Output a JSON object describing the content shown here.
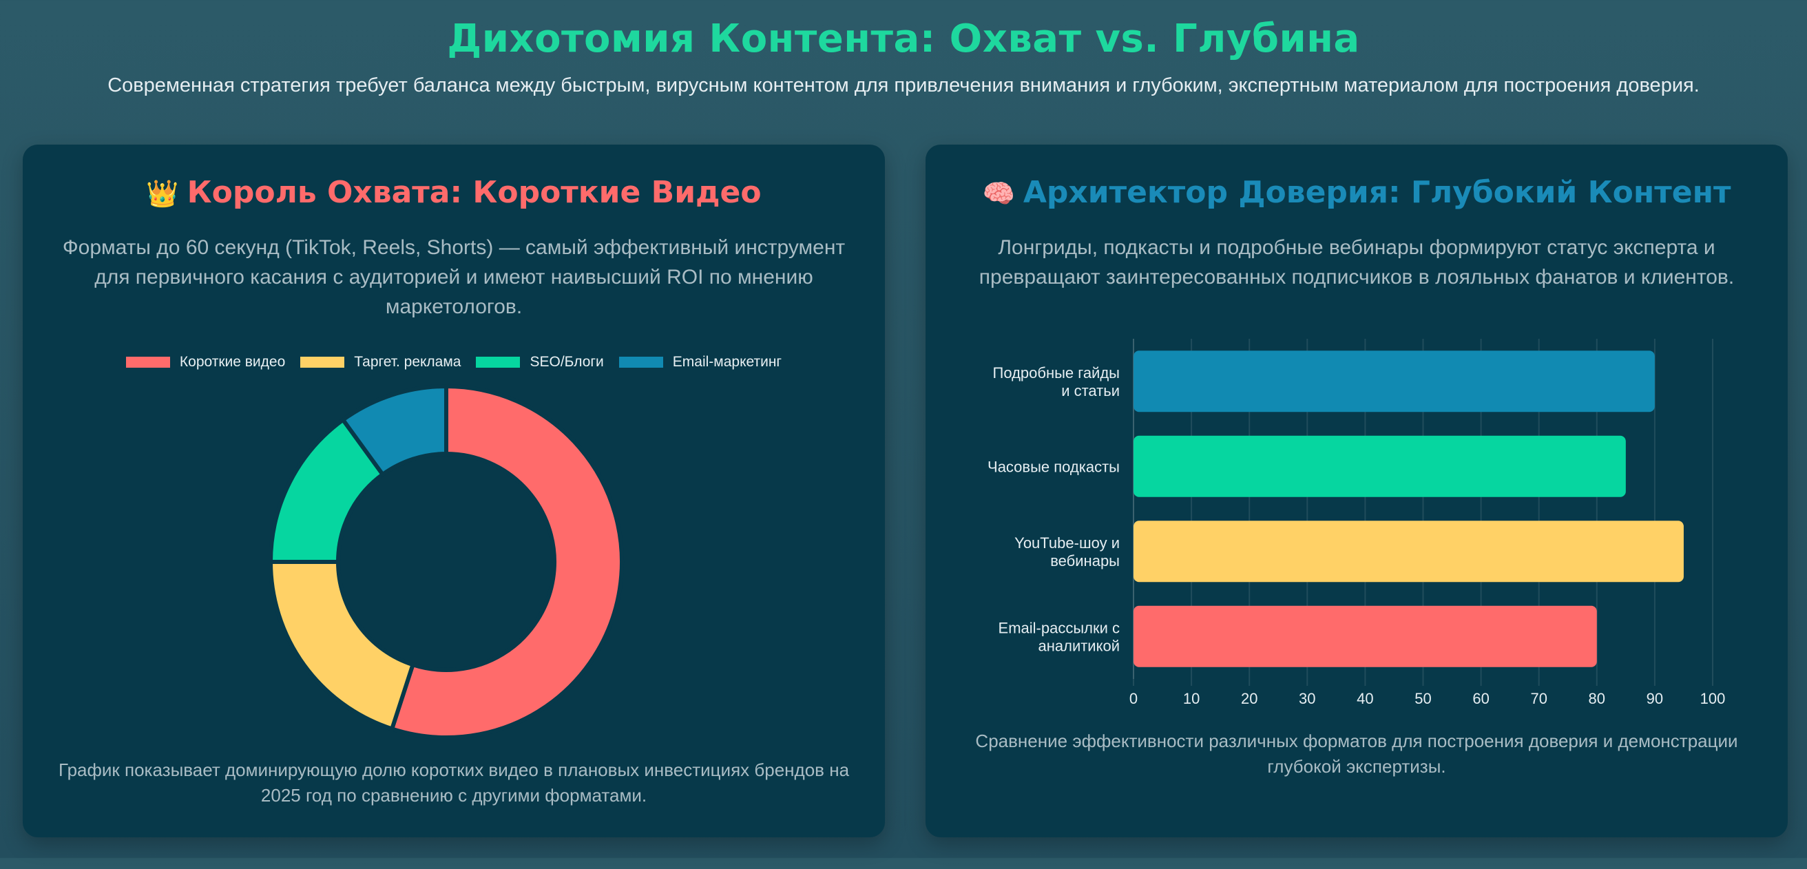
{
  "header": {
    "title": "Дихотомия Контента: Охват vs. Глубина",
    "subtitle": "Современная стратегия требует баланса между быстрым, вирусным контентом для привлечения внимания и глубоким, экспертным материалом для построения доверия."
  },
  "left_card": {
    "emoji": "👑",
    "title": "Король Охвата: Короткие Видео",
    "description": "Форматы до 60 секунд (TikTok, Reels, Shorts) — самый эффективный инструмент для первичного касания с аудиторией и имеют наивысший ROI по мнению маркетологов.",
    "footnote": "График показывает доминирующую долю коротких видео в плановых инвестициях брендов на 2025 год по сравнению с другими форматами."
  },
  "right_card": {
    "emoji": "🧠",
    "title": "Архитектор Доверия: Глубокий Контент",
    "description": "Лонгриды, подкасты и подробные вебинары формируют статус эксперта и превращают заинтересованных подписчиков в лояльных фанатов и клиентов.",
    "footnote": "Сравнение эффективности различных форматов для построения доверия и демонстрации глубокой экспертизы."
  },
  "chart_data": [
    {
      "type": "pie",
      "variant": "doughnut",
      "title": "",
      "categories": [
        "Короткие видео",
        "Таргет. реклама",
        "SEO/Блоги",
        "Email-маркетинг"
      ],
      "values": [
        55,
        20,
        15,
        10
      ],
      "colors": [
        "#ff6b6b",
        "#ffd166",
        "#06d6a0",
        "#118ab2"
      ],
      "legend": "top"
    },
    {
      "type": "bar",
      "orientation": "horizontal",
      "title": "",
      "categories": [
        [
          "Подробные гайды",
          "и статьи"
        ],
        [
          "Часовые подкасты"
        ],
        [
          "YouTube-шоу и",
          "вебинары"
        ],
        [
          "Email-рассылки с",
          "аналитикой"
        ]
      ],
      "values": [
        90,
        85,
        95,
        80
      ],
      "colors": [
        "#118ab2",
        "#06d6a0",
        "#ffd166",
        "#ff6b6b"
      ],
      "xlim": [
        0,
        100
      ],
      "xticks": [
        0,
        10,
        20,
        30,
        40,
        50,
        60,
        70,
        80,
        90,
        100
      ],
      "grid": true,
      "legend": "none"
    }
  ]
}
